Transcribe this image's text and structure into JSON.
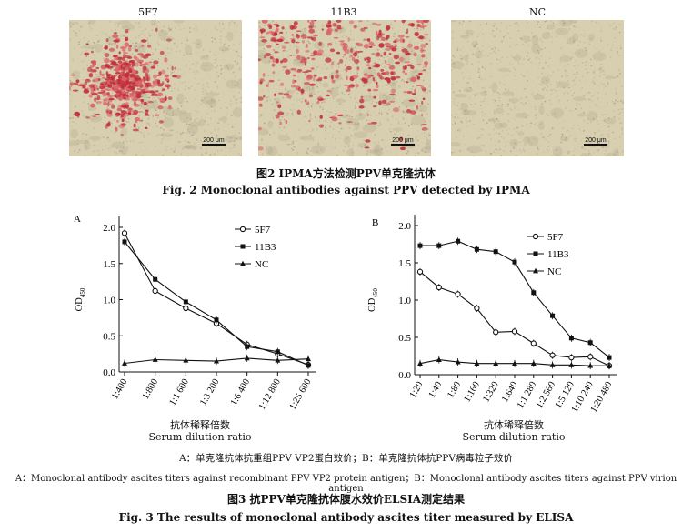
{
  "figure2": {
    "panels": [
      {
        "label": "5F7",
        "scale_bar": "200 μm"
      },
      {
        "label": "11B3",
        "scale_bar": "200 μm"
      },
      {
        "label": "NC",
        "scale_bar": "200 μm"
      }
    ],
    "caption_cn": "图2   IPMA方法检测PPV单克隆抗体",
    "caption_en": "Fig. 2   Monoclonal antibodies against PPV detected by IPMA"
  },
  "figure3": {
    "caption_cn": "图3   抗PPV单克隆抗体腹水效价ELSIA测定结果",
    "caption_en": "Fig. 3   The results of monoclonal antibody ascites titer measured by ELISA",
    "note_cn": "A：单克隆抗体抗重组PPV VP2蛋白效价；B：单克隆抗体抗PPV病毒粒子效价",
    "note_en": "A：Monoclonal antibody ascites titers against recombinant PPV VP2 protein antigen；B：Monoclonal antibody ascites titers against PPV virion antigen"
  },
  "chart_data": [
    {
      "panel": "A",
      "type": "line",
      "ylabel": "OD450",
      "xlabel_cn": "抗体稀释倍数",
      "xlabel_en": "Serum dilution ratio",
      "categories": [
        "1:400",
        "1:800",
        "1:1 600",
        "1:3 200",
        "1:6 400",
        "1:12 800",
        "1:25 600"
      ],
      "ylim": [
        0,
        2.0
      ],
      "yticks": [
        "0.0",
        "0.5",
        "1.0",
        "1.5",
        "2.0"
      ],
      "legend_position": "top-right",
      "series": [
        {
          "name": "5F7",
          "marker": "circle-open",
          "values": [
            1.92,
            1.12,
            0.88,
            0.67,
            0.38,
            0.25,
            0.1
          ]
        },
        {
          "name": "11B3",
          "marker": "square-filled",
          "values": [
            1.8,
            1.28,
            0.97,
            0.72,
            0.35,
            0.28,
            0.09
          ]
        },
        {
          "name": "NC",
          "marker": "triangle-filled",
          "values": [
            0.12,
            0.17,
            0.16,
            0.15,
            0.19,
            0.16,
            0.18
          ]
        }
      ]
    },
    {
      "panel": "B",
      "type": "line",
      "ylabel": "OD450",
      "xlabel_cn": "抗体稀释倍数",
      "xlabel_en": "Serum dilution ratio",
      "categories": [
        "1:20",
        "1:40",
        "1:80",
        "1:160",
        "1:320",
        "1:640",
        "1:1 280",
        "1:2 560",
        "1:5 120",
        "1:10 240",
        "1:20 480"
      ],
      "ylim": [
        0,
        2.0
      ],
      "yticks": [
        "0.0",
        "0.5",
        "1.0",
        "1.5",
        "2.0"
      ],
      "legend_position": "top-right",
      "series": [
        {
          "name": "5F7",
          "marker": "circle-open",
          "values": [
            1.38,
            1.17,
            1.08,
            0.89,
            0.57,
            0.58,
            0.42,
            0.26,
            0.23,
            0.24,
            0.12
          ]
        },
        {
          "name": "11B3",
          "marker": "square-filled",
          "values": [
            1.73,
            1.73,
            1.79,
            1.68,
            1.65,
            1.51,
            1.1,
            0.79,
            0.49,
            0.43,
            0.23
          ]
        },
        {
          "name": "NC",
          "marker": "triangle-filled",
          "values": [
            0.15,
            0.2,
            0.17,
            0.15,
            0.15,
            0.15,
            0.15,
            0.13,
            0.13,
            0.12,
            0.12
          ]
        }
      ]
    }
  ]
}
